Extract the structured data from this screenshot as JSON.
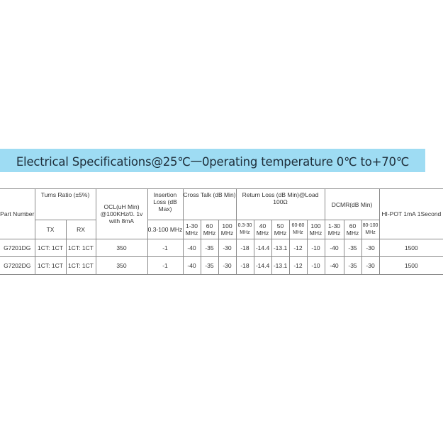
{
  "title": "Electrical Specifications@25℃一0perating temperature 0℃ to+70℃",
  "colors": {
    "banner": "#9edcf3",
    "border": "#8a8a8a"
  },
  "headers": {
    "part_number": "Part Number",
    "turns_ratio": "Turns Ratio (±5%)",
    "tx": "TX",
    "rx": "RX",
    "ocl": "OCL(uH Min) @100KHz/0. 1v with  8mA",
    "insertion_loss": "Insertion Loss (dB Max)",
    "insertion_sub": "0.3-100 MHz",
    "cross_talk": "Cross Talk (dB Min)",
    "cross_talk_sub": [
      "1-30 MHz",
      "60 MHz",
      "100 MHz"
    ],
    "return_loss": "Return Loss (dB Min)@Load 100Ω",
    "return_loss_sub": [
      "0.3-30 MHz",
      "40 MHz",
      "50 MHz",
      "60-80 MHz",
      "100 MHz"
    ],
    "dcmr": "DCMR(dB Min)",
    "dcmr_sub": [
      "1-30 MHz",
      "60 MHz",
      "80-100 MHz"
    ],
    "hipot": "HI-POT 1mA  1Second"
  },
  "rows": [
    [
      "G7201DG",
      "1CT: 1CT",
      "1CT: 1CT",
      "350",
      "-1",
      "-40",
      "-35",
      "-30",
      "-18",
      "-14.4",
      "-13.1",
      "-12",
      "-10",
      "-40",
      "-35",
      "-30",
      "1500"
    ],
    [
      "G7202DG",
      "1CT: 1CT",
      "1CT: 1CT",
      "350",
      "-1",
      "-40",
      "-35",
      "-30",
      "-18",
      "-14.4",
      "-13.1",
      "-12",
      "-10",
      "-40",
      "-35",
      "-30",
      "1500"
    ]
  ]
}
